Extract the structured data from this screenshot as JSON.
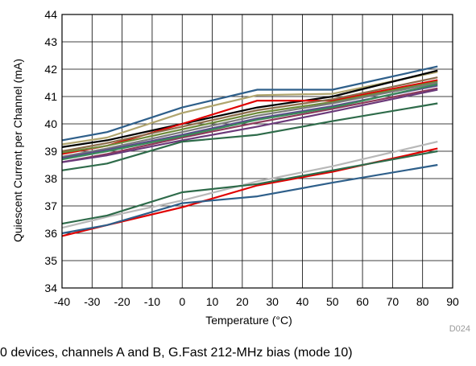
{
  "chart_data": {
    "type": "line",
    "xlabel": "Temperature (°C)",
    "ylabel": "Quiescent Current per Channel (mA)",
    "xlim": [
      -40,
      90
    ],
    "ylim": [
      34,
      44
    ],
    "x_ticks": [
      -40,
      -30,
      -20,
      -10,
      0,
      10,
      20,
      30,
      40,
      50,
      60,
      70,
      80,
      90
    ],
    "y_ticks": [
      34,
      35,
      36,
      37,
      38,
      39,
      40,
      41,
      42,
      43,
      44
    ],
    "grid": true,
    "figure_code": "D024",
    "caption": "0 devices, channels A and B, G.Fast 212-MHz bias (mode 10)",
    "series": [
      {
        "color": "#2e5f8a",
        "x": [
          -40,
          -25,
          0,
          25,
          50,
          85
        ],
        "values": [
          39.4,
          39.7,
          40.6,
          41.25,
          41.25,
          42.1
        ]
      },
      {
        "color": "#b0a56e",
        "x": [
          -40,
          -25,
          0,
          25,
          50,
          85
        ],
        "values": [
          39.25,
          39.5,
          40.4,
          41.05,
          41.1,
          41.9
        ]
      },
      {
        "color": "#000000",
        "x": [
          -40,
          -25,
          0,
          25,
          50,
          85
        ],
        "values": [
          39.15,
          39.4,
          40.0,
          40.6,
          41.0,
          41.95
        ]
      },
      {
        "color": "#e00000",
        "x": [
          -40,
          -25,
          0,
          25,
          50,
          85
        ],
        "values": [
          38.9,
          39.2,
          40.0,
          40.85,
          40.85,
          41.6
        ]
      },
      {
        "color": "#8b6b4a",
        "x": [
          -40,
          -25,
          0,
          25,
          50,
          85
        ],
        "values": [
          39.0,
          39.3,
          39.9,
          40.5,
          40.9,
          41.7
        ]
      },
      {
        "color": "#6d8a3a",
        "x": [
          -40,
          -25,
          0,
          25,
          50,
          85
        ],
        "values": [
          38.95,
          39.2,
          39.8,
          40.4,
          40.8,
          41.55
        ]
      },
      {
        "color": "#7a7a7a",
        "x": [
          -40,
          -25,
          0,
          25,
          50,
          85
        ],
        "values": [
          38.8,
          39.1,
          39.7,
          40.3,
          40.75,
          41.5
        ]
      },
      {
        "color": "#5a4a8a",
        "x": [
          -40,
          -25,
          0,
          25,
          50,
          85
        ],
        "values": [
          38.75,
          39.05,
          39.6,
          40.2,
          40.65,
          41.4
        ]
      },
      {
        "color": "#8e3a5a",
        "x": [
          -40,
          -25,
          0,
          25,
          50,
          85
        ],
        "values": [
          38.6,
          38.9,
          39.5,
          40.05,
          40.55,
          41.3
        ]
      },
      {
        "color": "#6b3a7a",
        "x": [
          -40,
          -25,
          0,
          25,
          50,
          85
        ],
        "values": [
          38.6,
          38.85,
          39.4,
          39.9,
          40.45,
          41.25
        ]
      },
      {
        "color": "#3a8a5a",
        "x": [
          -40,
          -25,
          0,
          25,
          50,
          85
        ],
        "values": [
          38.7,
          39.0,
          39.55,
          40.15,
          40.6,
          41.45
        ]
      },
      {
        "color": "#2e6b4a",
        "x": [
          -40,
          -25,
          0,
          25,
          50,
          85
        ],
        "values": [
          38.3,
          38.55,
          39.35,
          39.6,
          40.1,
          40.75
        ]
      },
      {
        "color": "#b8b8b8",
        "x": [
          -40,
          -25,
          0,
          25,
          50,
          85
        ],
        "values": [
          36.2,
          36.6,
          37.2,
          37.9,
          38.45,
          39.35
        ]
      },
      {
        "color": "#e00000",
        "x": [
          -40,
          -25,
          0,
          25,
          50,
          85
        ],
        "values": [
          35.9,
          36.3,
          36.95,
          37.75,
          38.25,
          39.1
        ]
      },
      {
        "color": "#2e6b4a",
        "x": [
          -40,
          -25,
          0,
          25,
          50,
          85
        ],
        "values": [
          36.35,
          36.65,
          37.5,
          37.8,
          38.3,
          39.0
        ]
      },
      {
        "color": "#2e5f8a",
        "x": [
          -40,
          -25,
          0,
          25,
          50,
          85
        ],
        "values": [
          36.0,
          36.3,
          37.1,
          37.35,
          37.85,
          38.5
        ]
      }
    ]
  }
}
